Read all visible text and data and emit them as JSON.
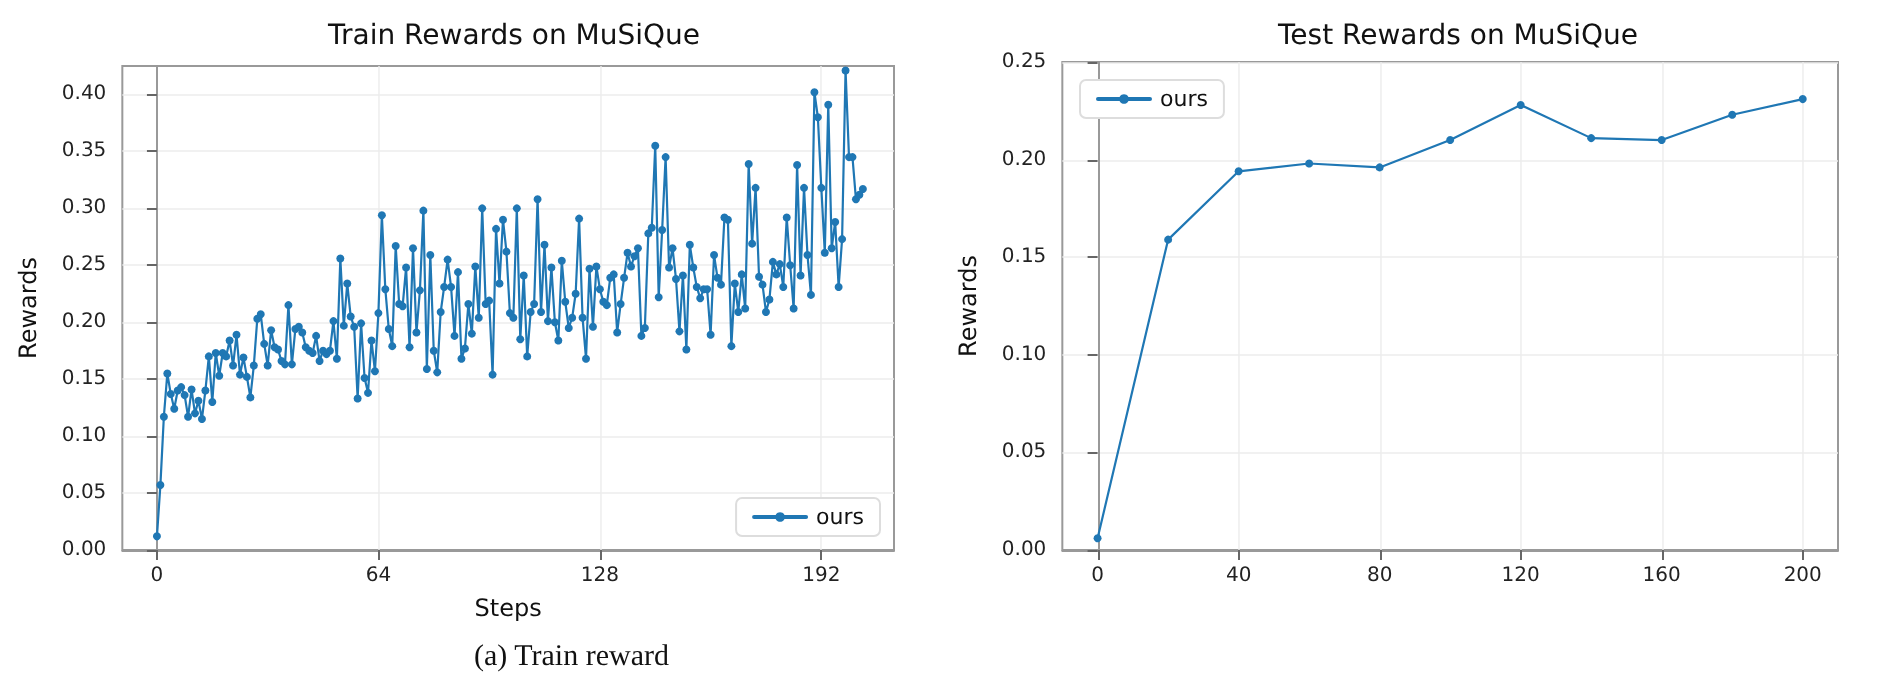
{
  "chart_data": [
    {
      "type": "line",
      "title": "Train Rewards on MuSiQue",
      "xlabel": "Steps",
      "ylabel": "Rewards",
      "annotations": [
        "(a) Train reward"
      ],
      "x": [
        0,
        1,
        2,
        3,
        4,
        5,
        6,
        7,
        8,
        9,
        10,
        11,
        12,
        13,
        14,
        15,
        16,
        17,
        18,
        19,
        20,
        21,
        22,
        23,
        24,
        25,
        26,
        27,
        28,
        29,
        30,
        31,
        32,
        33,
        34,
        35,
        36,
        37,
        38,
        39,
        40,
        41,
        42,
        43,
        44,
        45,
        46,
        47,
        48,
        49,
        50,
        51,
        52,
        53,
        54,
        55,
        56,
        57,
        58,
        59,
        60,
        61,
        62,
        63,
        64,
        65,
        66,
        67,
        68,
        69,
        70,
        71,
        72,
        73,
        74,
        75,
        76,
        77,
        78,
        79,
        80,
        81,
        82,
        83,
        84,
        85,
        86,
        87,
        88,
        89,
        90,
        91,
        92,
        93,
        94,
        95,
        96,
        97,
        98,
        99,
        100,
        101,
        102,
        103,
        104,
        105,
        106,
        107,
        108,
        109,
        110,
        111,
        112,
        113,
        114,
        115,
        116,
        117,
        118,
        119,
        120,
        121,
        122,
        123,
        124,
        125,
        126,
        127,
        128,
        129,
        130,
        131,
        132,
        133,
        134,
        135,
        136,
        137,
        138,
        139,
        140,
        141,
        142,
        143,
        144,
        145,
        146,
        147,
        148,
        149,
        150,
        151,
        152,
        153,
        154,
        155,
        156,
        157,
        158,
        159,
        160,
        161,
        162,
        163,
        164,
        165,
        166,
        167,
        168,
        169,
        170,
        171,
        172,
        173,
        174,
        175,
        176,
        177,
        178,
        179,
        180,
        181,
        182,
        183,
        184,
        185,
        186,
        187,
        188,
        189,
        190,
        191,
        192,
        193,
        194,
        195,
        196,
        197,
        198,
        199,
        200,
        201,
        202,
        203,
        204
      ],
      "series": [
        {
          "name": "ours",
          "color": "#1f77b4",
          "values": [
            0.012,
            0.057,
            0.117,
            0.155,
            0.137,
            0.124,
            0.14,
            0.143,
            0.136,
            0.117,
            0.141,
            0.12,
            0.131,
            0.115,
            0.14,
            0.17,
            0.13,
            0.173,
            0.153,
            0.173,
            0.17,
            0.184,
            0.162,
            0.189,
            0.154,
            0.169,
            0.152,
            0.134,
            0.162,
            0.203,
            0.207,
            0.181,
            0.162,
            0.193,
            0.178,
            0.176,
            0.166,
            0.163,
            0.215,
            0.163,
            0.194,
            0.196,
            0.191,
            0.178,
            0.175,
            0.173,
            0.188,
            0.166,
            0.175,
            0.172,
            0.175,
            0.201,
            0.168,
            0.256,
            0.197,
            0.234,
            0.205,
            0.196,
            0.133,
            0.199,
            0.151,
            0.138,
            0.184,
            0.157,
            0.208,
            0.294,
            0.229,
            0.194,
            0.179,
            0.267,
            0.216,
            0.214,
            0.248,
            0.178,
            0.265,
            0.191,
            0.228,
            0.298,
            0.159,
            0.259,
            0.175,
            0.156,
            0.209,
            0.231,
            0.255,
            0.231,
            0.188,
            0.244,
            0.168,
            0.177,
            0.216,
            0.19,
            0.249,
            0.204,
            0.3,
            0.216,
            0.219,
            0.154,
            0.282,
            0.234,
            0.29,
            0.262,
            0.208,
            0.204,
            0.3,
            0.185,
            0.241,
            0.17,
            0.209,
            0.216,
            0.308,
            0.209,
            0.268,
            0.201,
            0.248,
            0.2,
            0.184,
            0.254,
            0.218,
            0.195,
            0.204,
            0.225,
            0.291,
            0.204,
            0.168,
            0.247,
            0.196,
            0.249,
            0.229,
            0.218,
            0.215,
            0.239,
            0.242,
            0.191,
            0.216,
            0.239,
            0.261,
            0.249,
            0.258,
            0.265,
            0.188,
            0.195,
            0.278,
            0.283,
            0.355,
            0.222,
            0.281,
            0.345,
            0.248,
            0.265,
            0.238,
            0.192,
            0.241,
            0.176,
            0.268,
            0.248,
            0.231,
            0.221,
            0.229,
            0.229,
            0.189,
            0.259,
            0.239,
            0.233,
            0.292,
            0.29,
            0.179,
            0.234,
            0.209,
            0.242,
            0.212,
            0.339,
            0.269,
            0.318,
            0.24,
            0.233,
            0.209,
            0.22,
            0.253,
            0.242,
            0.251,
            0.231,
            0.292,
            0.25,
            0.212,
            0.338,
            0.241,
            0.318,
            0.259,
            0.224,
            0.402,
            0.38,
            0.318,
            0.261,
            0.391,
            0.265,
            0.288,
            0.231,
            0.273,
            0.421,
            0.345,
            0.345,
            0.308,
            0.312,
            0.317
          ]
        }
      ],
      "xlim": [
        -10,
        213
      ],
      "xticks": [
        0,
        64,
        128,
        192
      ],
      "ylim": [
        0,
        0.425
      ],
      "yticks": [
        {
          "value": 0,
          "label": "0.00"
        },
        {
          "value": 0.05,
          "label": "0.05"
        },
        {
          "value": 0.1,
          "label": "0.10"
        },
        {
          "value": 0.15,
          "label": "0.15"
        },
        {
          "value": 0.2,
          "label": "0.20"
        },
        {
          "value": 0.25,
          "label": "0.25"
        },
        {
          "value": 0.3,
          "label": "0.30"
        },
        {
          "value": 0.35,
          "label": "0.35"
        },
        {
          "value": 0.4,
          "label": "0.40"
        }
      ],
      "grid": true,
      "legend": "bottom right",
      "marker": "circle",
      "line_style": "solid"
    },
    {
      "type": "line",
      "title": "Test Rewards on MuSiQue",
      "ylabel": "Rewards",
      "x": [
        0,
        20,
        40,
        60,
        80,
        100,
        120,
        140,
        160,
        180,
        200
      ],
      "series": [
        {
          "name": "ours",
          "color": "#1f77b4",
          "values": [
            0.006,
            0.159,
            0.194,
            0.198,
            0.196,
            0.21,
            0.228,
            0.211,
            0.21,
            0.223,
            0.231
          ]
        }
      ],
      "xlim": [
        -10,
        210
      ],
      "xticks": [
        0,
        40,
        80,
        120,
        160,
        200
      ],
      "ylim": [
        0,
        0.25
      ],
      "yticks": [
        {
          "value": 0,
          "label": "0.00"
        },
        {
          "value": 0.05,
          "label": "0.05"
        },
        {
          "value": 0.1,
          "label": "0.10"
        },
        {
          "value": 0.15,
          "label": "0.15"
        },
        {
          "value": 0.2,
          "label": "0.20"
        },
        {
          "value": 0.25,
          "label": "0.25"
        }
      ],
      "grid": true,
      "legend": "top left",
      "marker": "circle",
      "line_style": "solid"
    }
  ]
}
